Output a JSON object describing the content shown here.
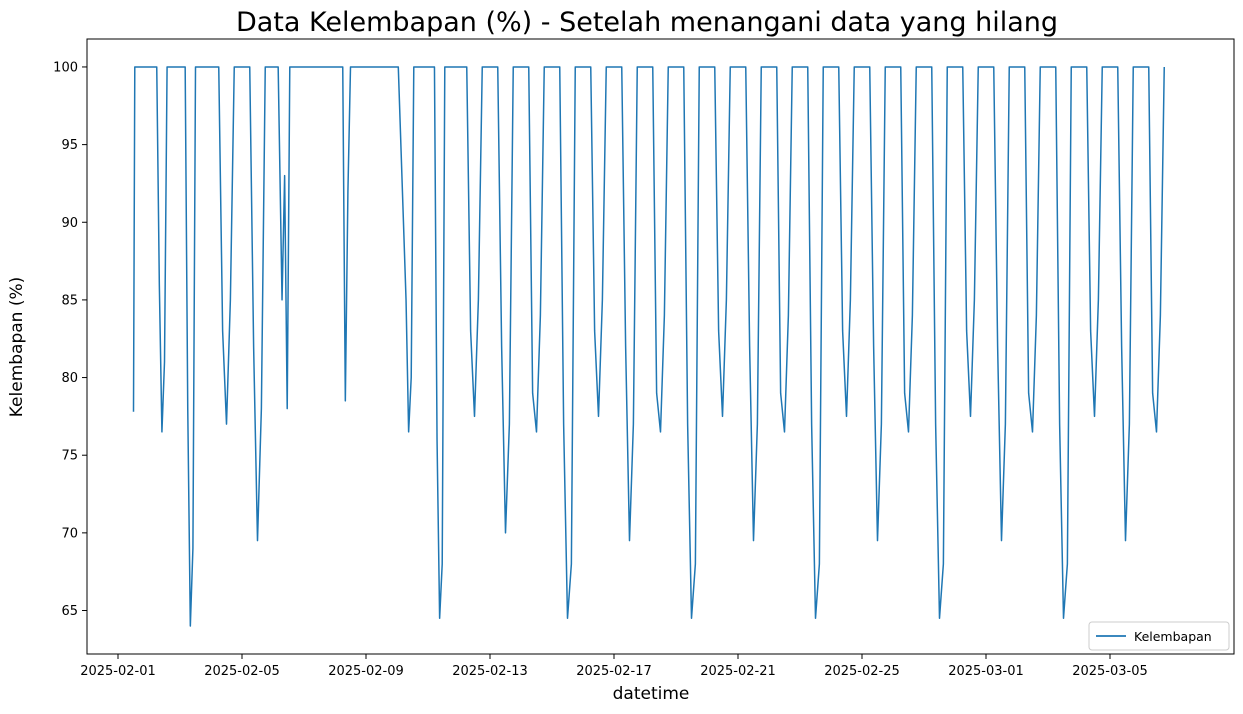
{
  "chart_data": {
    "type": "line",
    "title": "Data Kelembapan (%) - Setelah menangani data yang hilang",
    "xlabel": "datetime",
    "ylabel": "Kelembapan (%)",
    "xlim": [
      "2025-01-31",
      "2025-03-09"
    ],
    "ylim": [
      62.2,
      101.8
    ],
    "x_ticks": [
      "2025-02-01",
      "2025-02-05",
      "2025-02-09",
      "2025-02-13",
      "2025-02-17",
      "2025-02-21",
      "2025-02-25",
      "2025-03-01",
      "2025-03-05"
    ],
    "y_ticks": [
      65,
      70,
      75,
      80,
      85,
      90,
      95,
      100
    ],
    "grid": false,
    "legend_position": "lower-right",
    "series": [
      {
        "name": "Kelembapan",
        "color": "#1f77b4",
        "x": [
          "2025-02-01 12:00",
          "2025-02-01 13:00",
          "2025-02-01 14:00",
          "2025-02-02 06:00",
          "2025-02-02 08:00",
          "2025-02-02 10:00",
          "2025-02-02 12:00",
          "2025-02-02 14:00",
          "2025-02-02 17:00",
          "2025-02-02 22:00",
          "2025-02-03 04:00",
          "2025-02-03 06:00",
          "2025-02-03 08:00",
          "2025-02-03 10:00",
          "2025-02-03 12:00",
          "2025-02-03 14:00",
          "2025-02-03 17:00",
          "2025-02-04 06:00",
          "2025-02-04 09:00",
          "2025-02-04 12:00",
          "2025-02-04 15:00",
          "2025-02-04 18:00",
          "2025-02-04 22:00",
          "2025-02-05 06:00",
          "2025-02-05 09:00",
          "2025-02-05 12:00",
          "2025-02-05 15:00",
          "2025-02-05 18:00",
          "2025-02-06 00:00",
          "2025-02-06 04:00",
          "2025-02-06 07:00",
          "2025-02-06 09:00",
          "2025-02-06 11:00",
          "2025-02-06 13:00",
          "2025-02-07 12:00",
          "2025-02-08 00:00",
          "2025-02-08 06:00",
          "2025-02-08 08:00",
          "2025-02-08 10:00",
          "2025-02-08 12:00",
          "2025-02-08 16:00",
          "2025-02-09 12:00",
          "2025-02-10 01:00",
          "2025-02-10 07:00",
          "2025-02-10 09:00",
          "2025-02-10 11:00",
          "2025-02-10 13:00",
          "2025-02-10 16:00",
          "2025-02-10 22:00",
          "2025-02-11 05:00",
          "2025-02-11 07:00",
          "2025-02-11 09:00",
          "2025-02-11 11:00",
          "2025-02-11 13:00",
          "2025-02-11 16:00",
          "2025-02-12 06:00",
          "2025-02-12 09:00",
          "2025-02-12 12:00",
          "2025-02-12 15:00",
          "2025-02-12 18:00",
          "2025-02-13 06:00",
          "2025-02-13 09:00",
          "2025-02-13 12:00",
          "2025-02-13 15:00",
          "2025-02-13 18:00",
          "2025-02-14 06:00",
          "2025-02-14 09:00",
          "2025-02-14 12:00",
          "2025-02-14 15:00",
          "2025-02-14 18:00",
          "2025-02-15 06:00",
          "2025-02-15 09:00",
          "2025-02-15 12:00",
          "2025-02-15 15:00",
          "2025-02-15 18:00",
          "2025-02-16 06:00",
          "2025-02-16 09:00",
          "2025-02-16 12:00",
          "2025-02-16 15:00",
          "2025-02-16 18:00",
          "2025-02-17 06:00",
          "2025-02-17 09:00",
          "2025-02-17 12:00",
          "2025-02-17 15:00",
          "2025-02-17 18:00",
          "2025-02-18 06:00",
          "2025-02-18 09:00",
          "2025-02-18 12:00",
          "2025-02-18 15:00",
          "2025-02-18 18:00",
          "2025-02-19 06:00",
          "2025-02-19 09:00",
          "2025-02-19 12:00",
          "2025-02-19 15:00",
          "2025-02-19 18:00",
          "2025-02-20 06:00",
          "2025-02-20 09:00",
          "2025-02-20 12:00",
          "2025-02-20 15:00",
          "2025-02-20 18:00",
          "2025-02-21 06:00",
          "2025-02-21 09:00",
          "2025-02-21 12:00",
          "2025-02-21 15:00",
          "2025-02-21 18:00",
          "2025-02-22 06:00",
          "2025-02-22 09:00",
          "2025-02-22 12:00",
          "2025-02-22 15:00",
          "2025-02-22 18:00",
          "2025-02-23 06:00",
          "2025-02-23 09:00",
          "2025-02-23 12:00",
          "2025-02-23 15:00",
          "2025-02-23 18:00",
          "2025-02-24 06:00",
          "2025-02-24 09:00",
          "2025-02-24 12:00",
          "2025-02-24 15:00",
          "2025-02-24 18:00",
          "2025-02-25 06:00",
          "2025-02-25 09:00",
          "2025-02-25 12:00",
          "2025-02-25 15:00",
          "2025-02-25 18:00",
          "2025-02-26 06:00",
          "2025-02-26 09:00",
          "2025-02-26 12:00",
          "2025-02-26 15:00",
          "2025-02-26 18:00",
          "2025-02-27 06:00",
          "2025-02-27 09:00",
          "2025-02-27 12:00",
          "2025-02-27 15:00",
          "2025-02-27 18:00",
          "2025-02-28 06:00",
          "2025-02-28 09:00",
          "2025-02-28 12:00",
          "2025-02-28 15:00",
          "2025-02-28 18:00",
          "2025-03-01 06:00",
          "2025-03-01 09:00",
          "2025-03-01 12:00",
          "2025-03-01 15:00",
          "2025-03-01 18:00",
          "2025-03-02 06:00",
          "2025-03-02 09:00",
          "2025-03-02 12:00",
          "2025-03-02 15:00",
          "2025-03-02 18:00",
          "2025-03-03 06:00",
          "2025-03-03 09:00",
          "2025-03-03 12:00",
          "2025-03-03 15:00",
          "2025-03-03 18:00",
          "2025-03-04 06:00",
          "2025-03-04 09:00",
          "2025-03-04 12:00",
          "2025-03-04 15:00",
          "2025-03-04 18:00",
          "2025-03-05 06:00",
          "2025-03-05 09:00",
          "2025-03-05 12:00",
          "2025-03-05 15:00",
          "2025-03-05 18:00",
          "2025-03-06 06:00",
          "2025-03-06 09:00",
          "2025-03-06 12:00",
          "2025-03-06 15:00",
          "2025-03-06 18:00"
        ],
        "values": [
          77.8,
          100,
          100,
          100,
          86,
          76.5,
          81,
          100,
          100,
          100,
          100,
          78,
          64,
          69,
          100,
          100,
          100,
          100,
          83,
          77,
          85,
          100,
          100,
          100,
          82,
          69.5,
          78,
          100,
          100,
          100,
          85,
          93,
          78,
          100,
          100,
          100,
          100,
          78.5,
          92,
          100,
          100,
          100,
          100,
          85,
          76.5,
          80,
          100,
          100,
          100,
          100,
          76,
          64.5,
          68,
          100,
          100,
          100,
          83,
          77.5,
          85,
          100,
          100,
          82,
          70,
          77,
          100,
          100,
          79,
          76.5,
          84,
          100,
          100,
          77,
          64.5,
          68,
          100,
          100,
          83,
          77.5,
          85,
          100,
          100,
          82,
          69.5,
          77,
          100,
          100,
          79,
          76.5,
          84,
          100,
          100,
          77,
          64.5,
          68,
          100,
          100,
          83,
          77.5,
          85,
          100,
          100,
          82,
          69.5,
          77,
          100,
          100,
          79,
          76.5,
          84,
          100,
          100,
          77,
          64.5,
          68,
          100,
          100,
          83,
          77.5,
          85,
          100,
          100,
          82,
          69.5,
          77,
          100,
          100,
          79,
          76.5,
          84,
          100,
          100,
          77,
          64.5,
          68,
          100,
          100,
          83,
          77.5,
          85,
          100,
          100,
          82,
          69.5,
          77,
          100,
          100,
          79,
          76.5,
          84,
          100,
          100,
          77,
          64.5,
          68,
          100,
          100,
          83,
          77.5,
          85,
          100,
          100,
          82,
          69.5,
          77,
          100,
          100,
          79,
          76.5,
          84,
          100
        ]
      }
    ]
  }
}
